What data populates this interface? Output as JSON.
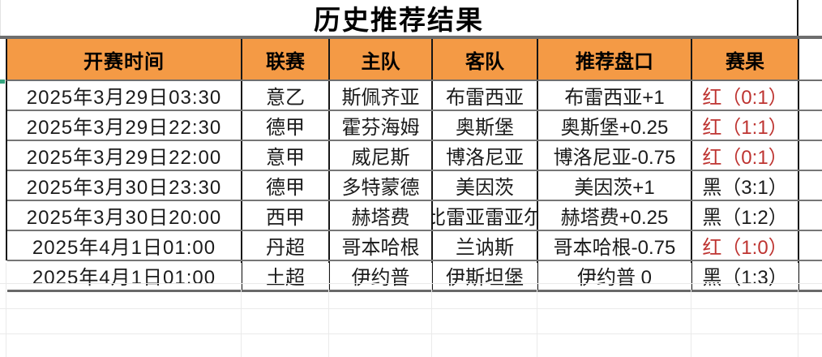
{
  "title": "历史推荐结果",
  "columns": {
    "time": "开赛时间",
    "league": "联赛",
    "home": "主队",
    "away": "客队",
    "handicap": "推荐盘口",
    "result": "赛果"
  },
  "rows": [
    {
      "time": "2025年3月29日03:30",
      "league": "意乙",
      "home": "斯佩齐亚",
      "away": "布雷西亚",
      "handicap": "布雷西亚+1",
      "result": "红（0:1）",
      "result_color": "red"
    },
    {
      "time": "2025年3月29日22:30",
      "league": "德甲",
      "home": "霍芬海姆",
      "away": "奥斯堡",
      "handicap": "奥斯堡+0.25",
      "result": "红（1:1）",
      "result_color": "red"
    },
    {
      "time": "2025年3月29日22:00",
      "league": "意甲",
      "home": "威尼斯",
      "away": "博洛尼亚",
      "handicap": "博洛尼亚-0.75",
      "result": "红（0:1）",
      "result_color": "red"
    },
    {
      "time": "2025年3月30日23:30",
      "league": "德甲",
      "home": "多特蒙德",
      "away": "美因茨",
      "handicap": "美因茨+1",
      "result": "黑（3:1）",
      "result_color": "black"
    },
    {
      "time": "2025年3月30日20:00",
      "league": "西甲",
      "home": "赫塔费",
      "away": "比雷亚雷亚尔",
      "handicap": "赫塔费+0.25",
      "result": "黑（1:2）",
      "result_color": "black"
    },
    {
      "time": "2025年4月1日01:00",
      "league": "丹超",
      "home": "哥本哈根",
      "away": "兰讷斯",
      "handicap": "哥本哈根-0.75",
      "result": "红（1:0）",
      "result_color": "red"
    },
    {
      "time": "2025年4月1日01:00",
      "league": "土超",
      "home": "伊约普",
      "away": "伊斯坦堡",
      "handicap": "伊约普 0",
      "result": "黑（1:3）",
      "result_color": "black"
    }
  ],
  "colors": {
    "header_bg": "#F49A45",
    "result_red": "#BE3431",
    "grid_dark": "#161616",
    "row_separator": "#767676"
  }
}
